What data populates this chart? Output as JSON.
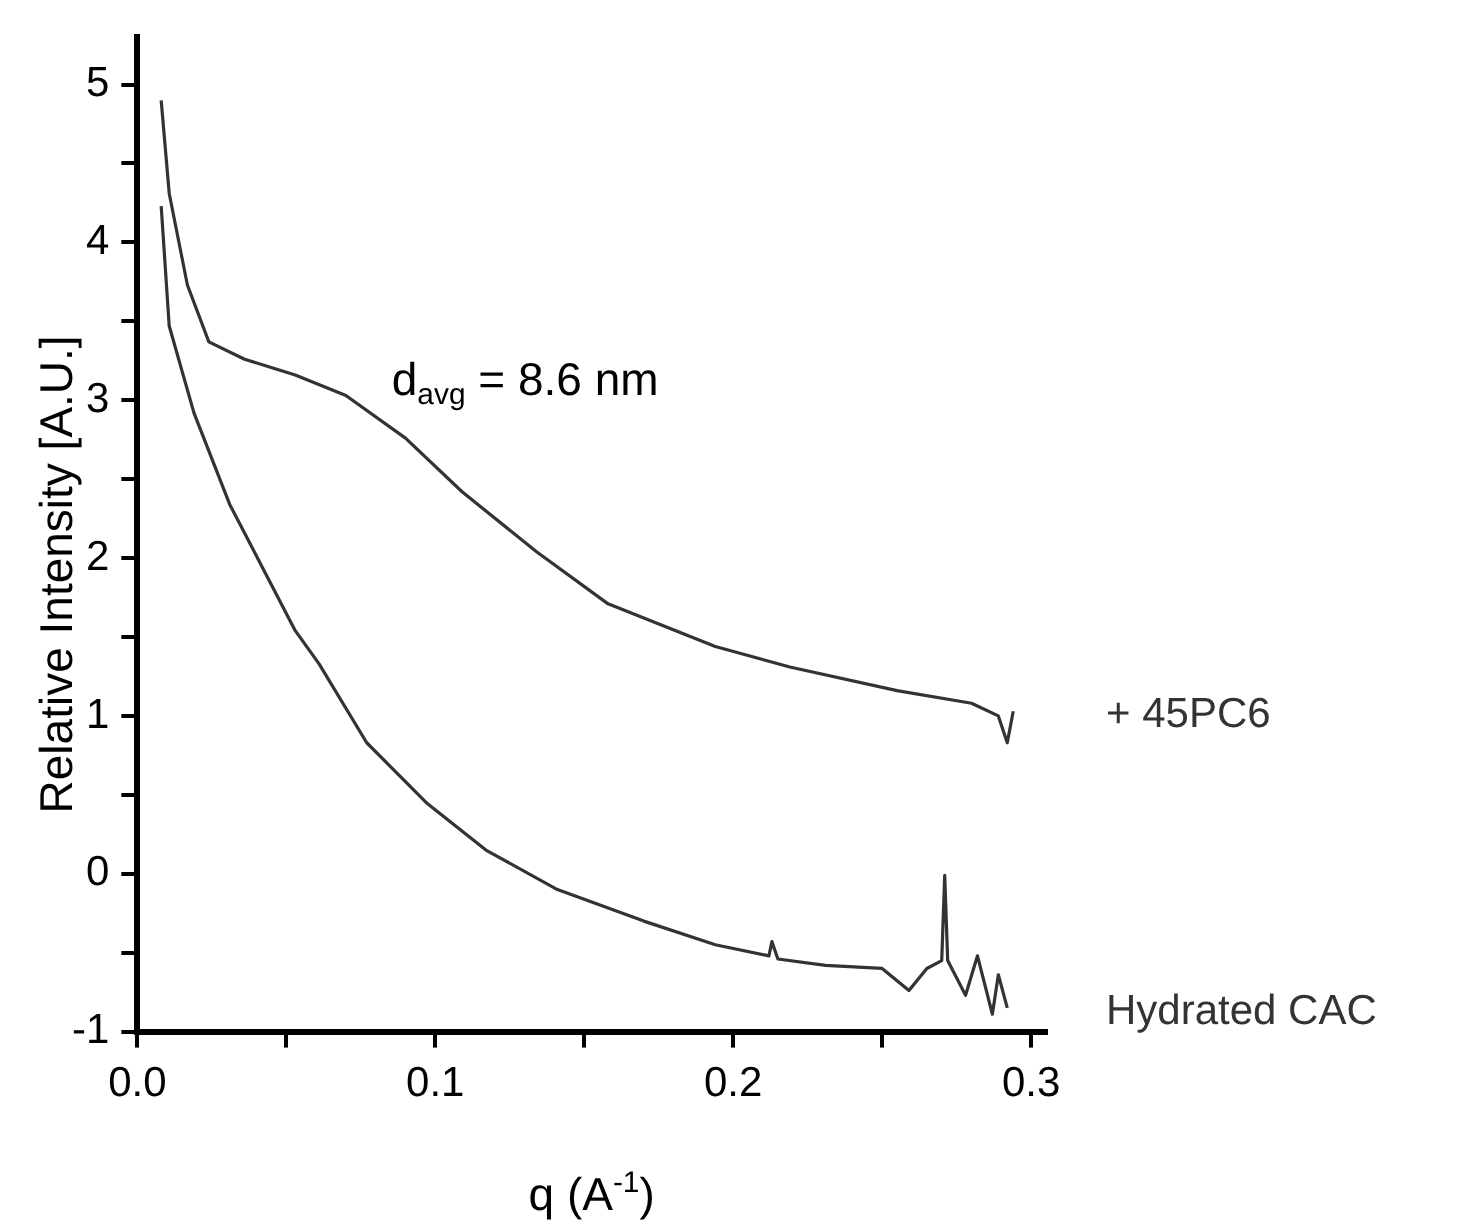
{
  "chart_data": {
    "type": "line",
    "xlabel": "q (A$^{-1}$)",
    "ylabel": "Relative Intensity [A.U.]",
    "annotations": [
      "d$_{avg}$ = 8.6 nm"
    ],
    "xlim": [
      0,
      0.305
    ],
    "ylim": [
      -1,
      5.3
    ],
    "xticks": [
      {
        "value": 0,
        "label": "0.0"
      },
      {
        "value": 0.05,
        "label": null
      },
      {
        "value": 0.1,
        "label": "0.1"
      },
      {
        "value": 0.15,
        "label": null
      },
      {
        "value": 0.2,
        "label": "0.2"
      },
      {
        "value": 0.25,
        "label": null
      },
      {
        "value": 0.3,
        "label": "0.3"
      }
    ],
    "yticks": [
      -1,
      {
        "value": -0.5,
        "label": null
      },
      0,
      {
        "value": 0.5,
        "label": null
      },
      1,
      {
        "value": 1.5,
        "label": null
      },
      2,
      {
        "value": 2.5,
        "label": null
      },
      3,
      {
        "value": 3.5,
        "label": null
      },
      4,
      {
        "value": 4.5,
        "label": null
      },
      5
    ],
    "grid": false,
    "legend": false,
    "marker": "none",
    "line_style": "solid",
    "series": [
      {
        "name": "+ 45PC6",
        "color": "#333333",
        "x": [
          0.008,
          0.0107,
          0.0168,
          0.024,
          0.036,
          0.053,
          0.07,
          0.09,
          0.109,
          0.134,
          0.158,
          0.194,
          0.219,
          0.255,
          0.28,
          0.289,
          0.292,
          0.294
        ],
        "values": [
          4.9,
          4.31,
          3.73,
          3.37,
          3.26,
          3.16,
          3.03,
          2.76,
          2.42,
          2.04,
          1.71,
          1.44,
          1.31,
          1.16,
          1.08,
          1.0,
          0.83,
          1.03
        ]
      },
      {
        "name": "Hydrated CAC",
        "color": "#333333",
        "x": [
          0.008,
          0.0107,
          0.019,
          0.031,
          0.053,
          0.061,
          0.077,
          0.097,
          0.117,
          0.141,
          0.17,
          0.194,
          0.212,
          0.213,
          0.215,
          0.231,
          0.25,
          0.259,
          0.265,
          0.27,
          0.271,
          0.272,
          0.278,
          0.282,
          0.287,
          0.289,
          0.292
        ],
        "values": [
          4.23,
          3.47,
          2.92,
          2.34,
          1.54,
          1.33,
          0.83,
          0.45,
          0.15,
          -0.1,
          -0.3,
          -0.45,
          -0.52,
          -0.43,
          -0.54,
          -0.58,
          -0.6,
          -0.74,
          -0.6,
          -0.55,
          -0.01,
          -0.55,
          -0.77,
          -0.52,
          -0.89,
          -0.64,
          -0.85
        ]
      }
    ]
  }
}
